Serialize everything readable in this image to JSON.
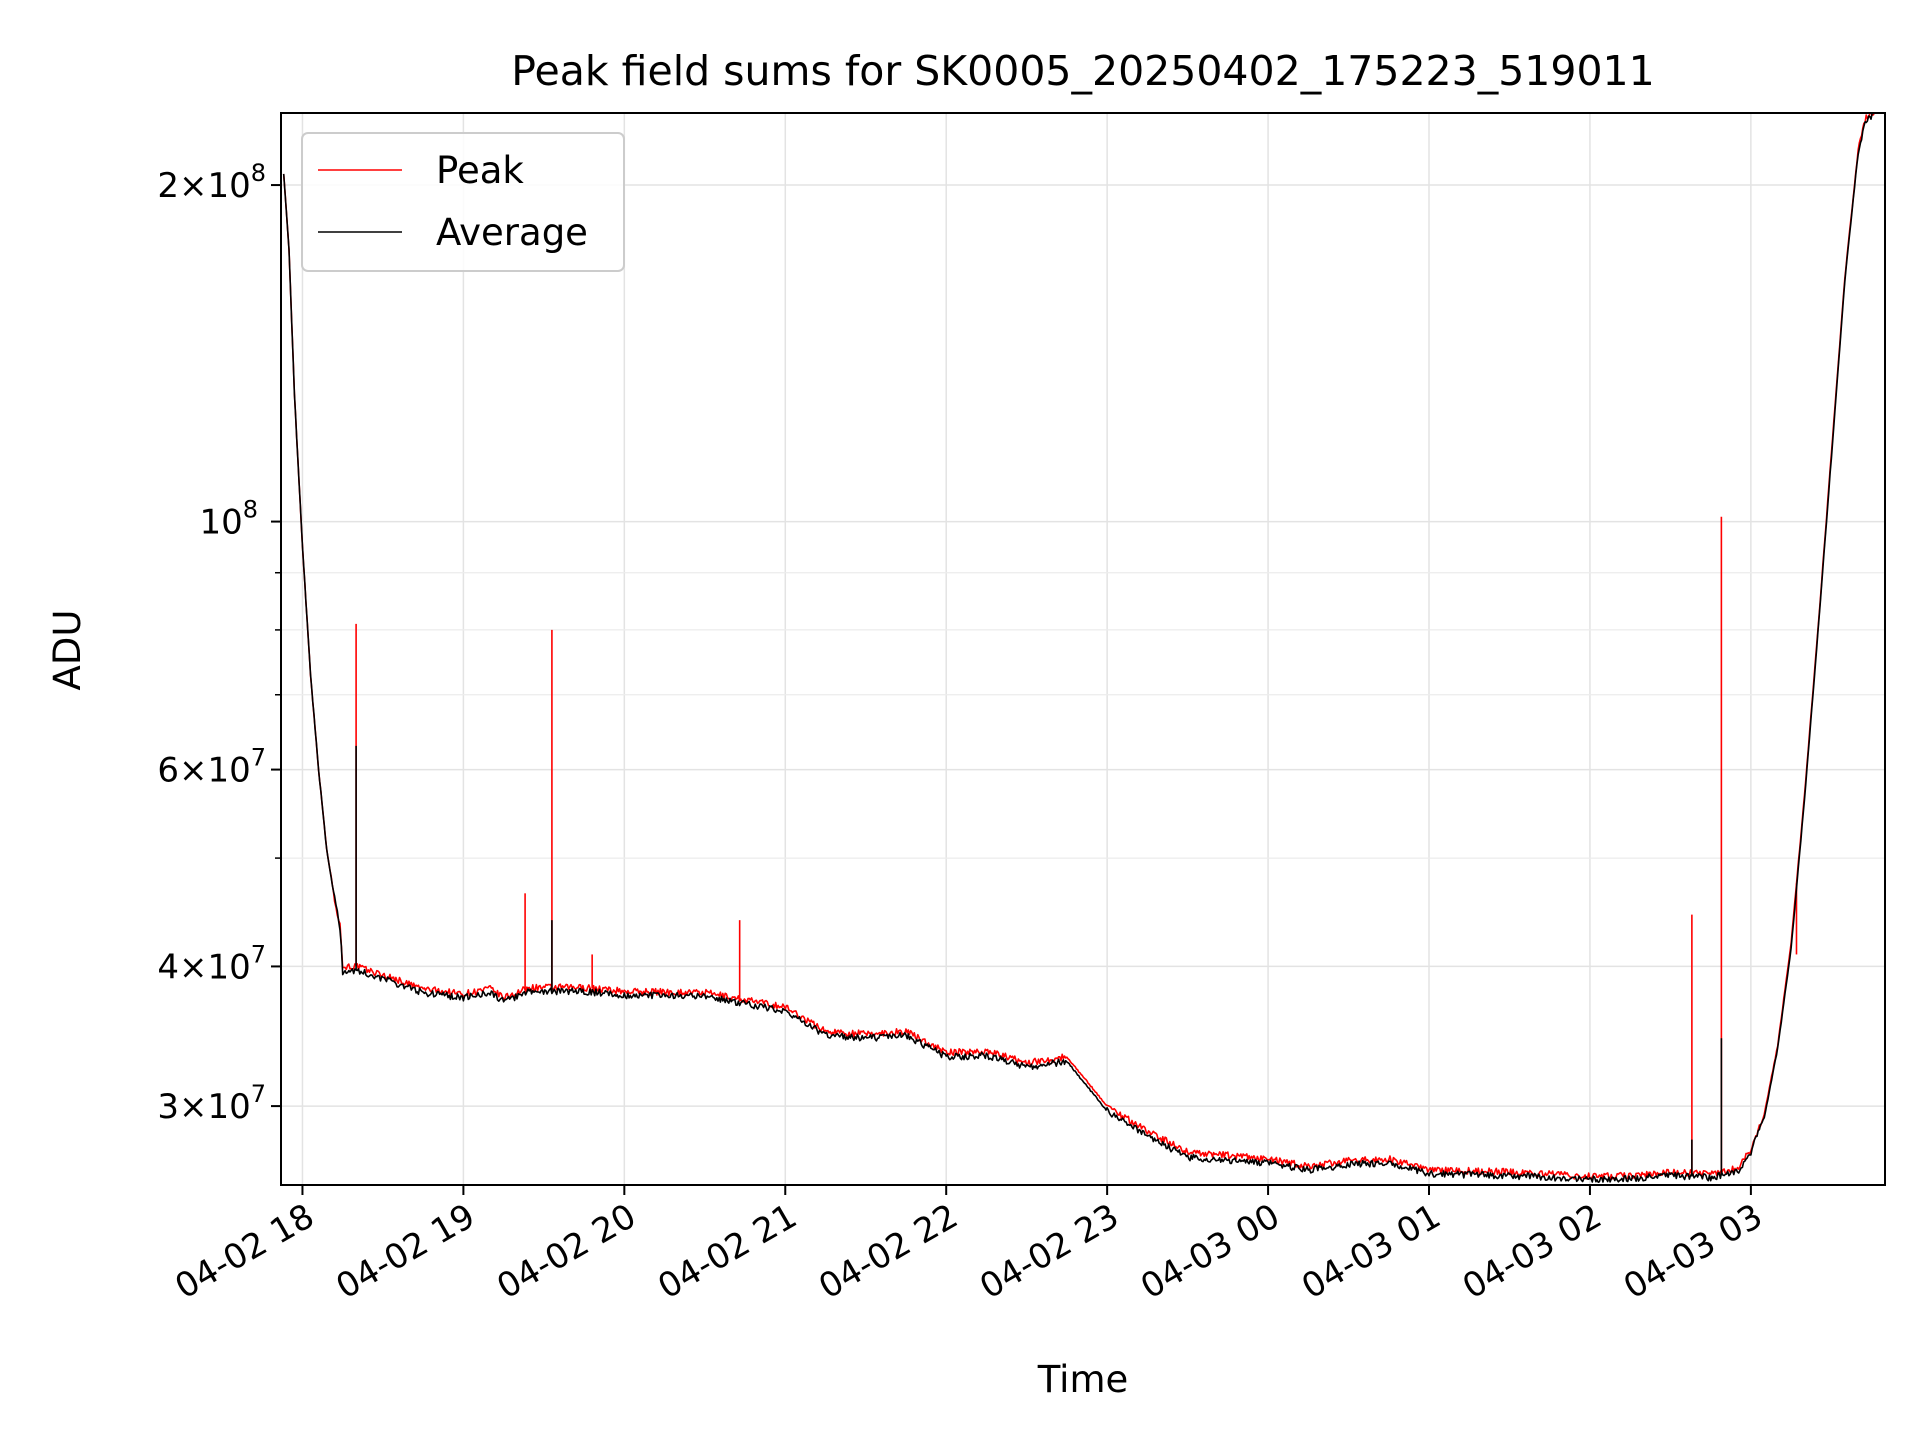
{
  "chart_data": {
    "type": "line",
    "title": "Peak field sums for SK0005_20250402_175223_519011",
    "xlabel": "Time",
    "ylabel": "ADU",
    "yscale": "log",
    "grid": true,
    "legend_position": "top-left",
    "xlim": [
      "2025-04-02 17:52",
      "2025-04-03 03:50"
    ],
    "ylim": [
      25500000,
      232000000
    ],
    "x_ticks": [
      {
        "label": "04-02 18",
        "time": "2025-04-02 18:00"
      },
      {
        "label": "04-02 19",
        "time": "2025-04-02 19:00"
      },
      {
        "label": "04-02 20",
        "time": "2025-04-02 20:00"
      },
      {
        "label": "04-02 21",
        "time": "2025-04-02 21:00"
      },
      {
        "label": "04-02 22",
        "time": "2025-04-02 22:00"
      },
      {
        "label": "04-02 23",
        "time": "2025-04-02 23:00"
      },
      {
        "label": "04-03 00",
        "time": "2025-04-03 00:00"
      },
      {
        "label": "04-03 01",
        "time": "2025-04-03 01:00"
      },
      {
        "label": "04-03 02",
        "time": "2025-04-03 02:00"
      },
      {
        "label": "04-03 03",
        "time": "2025-04-03 03:00"
      }
    ],
    "y_ticks": [
      {
        "value": 30000000,
        "base": "3",
        "exp": "7"
      },
      {
        "value": 40000000,
        "base": "4",
        "exp": "7"
      },
      {
        "value": 60000000,
        "base": "6",
        "exp": "7"
      },
      {
        "value": 100000000,
        "base": "",
        "exp": "8"
      },
      {
        "value": 200000000,
        "base": "2",
        "exp": "8"
      }
    ],
    "y_minor_ticks": [
      50000000,
      70000000,
      80000000,
      90000000
    ],
    "series": [
      {
        "name": "Peak",
        "color": "#ff0000",
        "points": [
          [
            "2025-04-02 17:53",
            205000000
          ],
          [
            "2025-04-02 17:55",
            175000000
          ],
          [
            "2025-04-02 17:57",
            130000000
          ],
          [
            "2025-04-02 18:00",
            95000000
          ],
          [
            "2025-04-02 18:03",
            73000000
          ],
          [
            "2025-04-02 18:06",
            60000000
          ],
          [
            "2025-04-02 18:09",
            51000000
          ],
          [
            "2025-04-02 18:12",
            46000000
          ],
          [
            "2025-04-02 18:14",
            43500000
          ],
          [
            "2025-04-02 18:15",
            40000000
          ],
          [
            "2025-04-02 18:20",
            40000000
          ],
          [
            "2025-04-02 18:30",
            39300000
          ],
          [
            "2025-04-02 18:45",
            38200000
          ],
          [
            "2025-04-02 19:00",
            37800000
          ],
          [
            "2025-04-02 19:10",
            38200000
          ],
          [
            "2025-04-02 19:15",
            37500000
          ],
          [
            "2025-04-02 19:25",
            38300000
          ],
          [
            "2025-04-02 19:45",
            38300000
          ],
          [
            "2025-04-02 20:00",
            38000000
          ],
          [
            "2025-04-02 20:30",
            37900000
          ],
          [
            "2025-04-02 21:00",
            36800000
          ],
          [
            "2025-04-02 21:15",
            35000000
          ],
          [
            "2025-04-02 21:30",
            34800000
          ],
          [
            "2025-04-02 21:45",
            35000000
          ],
          [
            "2025-04-02 22:00",
            33500000
          ],
          [
            "2025-04-02 22:15",
            33600000
          ],
          [
            "2025-04-02 22:30",
            32800000
          ],
          [
            "2025-04-02 22:45",
            33200000
          ],
          [
            "2025-04-02 23:00",
            30000000
          ],
          [
            "2025-04-02 23:15",
            28500000
          ],
          [
            "2025-04-02 23:30",
            27300000
          ],
          [
            "2025-04-02 23:45",
            27100000
          ],
          [
            "2025-04-03 00:00",
            26900000
          ],
          [
            "2025-04-03 00:15",
            26500000
          ],
          [
            "2025-04-03 00:30",
            26800000
          ],
          [
            "2025-04-03 00:45",
            26900000
          ],
          [
            "2025-04-03 01:00",
            26300000
          ],
          [
            "2025-04-03 01:30",
            26200000
          ],
          [
            "2025-04-03 02:00",
            25950000
          ],
          [
            "2025-04-03 02:15",
            26000000
          ],
          [
            "2025-04-03 02:30",
            26200000
          ],
          [
            "2025-04-03 02:45",
            26100000
          ],
          [
            "2025-04-03 02:55",
            26400000
          ],
          [
            "2025-04-03 03:00",
            27500000
          ],
          [
            "2025-04-03 03:05",
            29500000
          ],
          [
            "2025-04-03 03:10",
            34000000
          ],
          [
            "2025-04-03 03:15",
            42000000
          ],
          [
            "2025-04-03 03:20",
            57000000
          ],
          [
            "2025-04-03 03:25",
            80000000
          ],
          [
            "2025-04-03 03:30",
            115000000
          ],
          [
            "2025-04-03 03:35",
            165000000
          ],
          [
            "2025-04-03 03:40",
            215000000
          ],
          [
            "2025-04-03 03:43",
            230000000
          ],
          [
            "2025-04-03 03:47",
            232000000
          ]
        ],
        "spikes": [
          [
            "2025-04-02 18:20",
            81000000
          ],
          [
            "2025-04-02 19:23",
            46500000
          ],
          [
            "2025-04-02 19:33",
            80000000
          ],
          [
            "2025-04-02 19:48",
            41000000
          ],
          [
            "2025-04-02 20:43",
            44000000
          ],
          [
            "2025-04-03 02:38",
            44500000
          ],
          [
            "2025-04-03 02:49",
            101000000
          ],
          [
            "2025-04-03 03:17",
            41000000
          ]
        ]
      },
      {
        "name": "Average",
        "color": "#000000",
        "points": [
          [
            "2025-04-02 17:53",
            205000000
          ],
          [
            "2025-04-02 17:55",
            175000000
          ],
          [
            "2025-04-02 17:57",
            130000000
          ],
          [
            "2025-04-02 18:00",
            95000000
          ],
          [
            "2025-04-02 18:03",
            73000000
          ],
          [
            "2025-04-02 18:06",
            60000000
          ],
          [
            "2025-04-02 18:09",
            51000000
          ],
          [
            "2025-04-02 18:12",
            46000000
          ],
          [
            "2025-04-02 18:14",
            43200000
          ],
          [
            "2025-04-02 18:15",
            39600000
          ],
          [
            "2025-04-02 18:20",
            39700000
          ],
          [
            "2025-04-02 18:30",
            39000000
          ],
          [
            "2025-04-02 18:45",
            37900000
          ],
          [
            "2025-04-02 19:00",
            37500000
          ],
          [
            "2025-04-02 19:10",
            37900000
          ],
          [
            "2025-04-02 19:15",
            37200000
          ],
          [
            "2025-04-02 19:25",
            38000000
          ],
          [
            "2025-04-02 19:45",
            38000000
          ],
          [
            "2025-04-02 20:00",
            37700000
          ],
          [
            "2025-04-02 20:30",
            37600000
          ],
          [
            "2025-04-02 21:00",
            36500000
          ],
          [
            "2025-04-02 21:15",
            34700000
          ],
          [
            "2025-04-02 21:30",
            34500000
          ],
          [
            "2025-04-02 21:45",
            34700000
          ],
          [
            "2025-04-02 22:00",
            33200000
          ],
          [
            "2025-04-02 22:15",
            33300000
          ],
          [
            "2025-04-02 22:30",
            32500000
          ],
          [
            "2025-04-02 22:45",
            32900000
          ],
          [
            "2025-04-02 23:00",
            29700000
          ],
          [
            "2025-04-02 23:15",
            28200000
          ],
          [
            "2025-04-02 23:30",
            27000000
          ],
          [
            "2025-04-02 23:45",
            26800000
          ],
          [
            "2025-04-03 00:00",
            26700000
          ],
          [
            "2025-04-03 00:15",
            26300000
          ],
          [
            "2025-04-03 00:30",
            26600000
          ],
          [
            "2025-04-03 00:45",
            26700000
          ],
          [
            "2025-04-03 01:00",
            26100000
          ],
          [
            "2025-04-03 01:30",
            26000000
          ],
          [
            "2025-04-03 02:00",
            25800000
          ],
          [
            "2025-04-03 02:15",
            25850000
          ],
          [
            "2025-04-03 02:30",
            26000000
          ],
          [
            "2025-04-03 02:45",
            25900000
          ],
          [
            "2025-04-03 02:55",
            26200000
          ],
          [
            "2025-04-03 03:00",
            27300000
          ],
          [
            "2025-04-03 03:05",
            29300000
          ],
          [
            "2025-04-03 03:10",
            33800000
          ],
          [
            "2025-04-03 03:15",
            41500000
          ],
          [
            "2025-04-03 03:20",
            56500000
          ],
          [
            "2025-04-03 03:25",
            79500000
          ],
          [
            "2025-04-03 03:30",
            114000000
          ],
          [
            "2025-04-03 03:35",
            164000000
          ],
          [
            "2025-04-03 03:40",
            214000000
          ],
          [
            "2025-04-03 03:43",
            229000000
          ],
          [
            "2025-04-03 03:47",
            232000000
          ]
        ],
        "spikes": [
          [
            "2025-04-02 18:20",
            63000000
          ],
          [
            "2025-04-02 19:33",
            44000000
          ],
          [
            "2025-04-03 02:38",
            28000000
          ],
          [
            "2025-04-03 02:49",
            34500000
          ]
        ]
      }
    ]
  }
}
